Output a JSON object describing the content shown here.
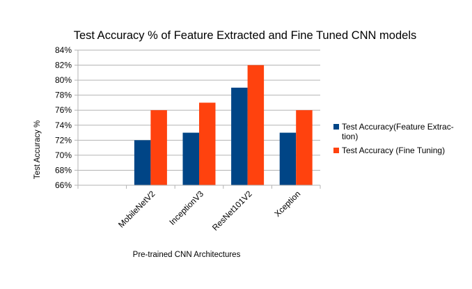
{
  "chart_data": {
    "type": "bar",
    "title": "Test Accuracy % of Feature Extracted and Fine Tuned CNN models",
    "xlabel": "Pre-trained CNN Architectures",
    "ylabel": "Test Accuracy %",
    "categories": [
      "",
      "MobileNetV2",
      "InceptionV3",
      "ResNet101V2",
      "Xception"
    ],
    "series": [
      {
        "name": "Test Accuracy(Feature Extrac-tion)",
        "legend_lines": [
          "Test Accuracy(Feature Extrac-",
          "tion)"
        ],
        "values": [
          null,
          72,
          73,
          79,
          73
        ],
        "color": "#004586"
      },
      {
        "name": "Test Accuracy  (Fine  Tuning)",
        "legend_lines": [
          "Test Accuracy  (Fine  Tuning)"
        ],
        "values": [
          null,
          76,
          77,
          82,
          76
        ],
        "color": "#ff420e"
      }
    ],
    "ylim": [
      66,
      84
    ],
    "yticks": [
      66,
      68,
      70,
      72,
      74,
      76,
      78,
      80,
      82,
      84
    ],
    "ytick_suffix": "%",
    "grid": true,
    "legend": "right"
  }
}
